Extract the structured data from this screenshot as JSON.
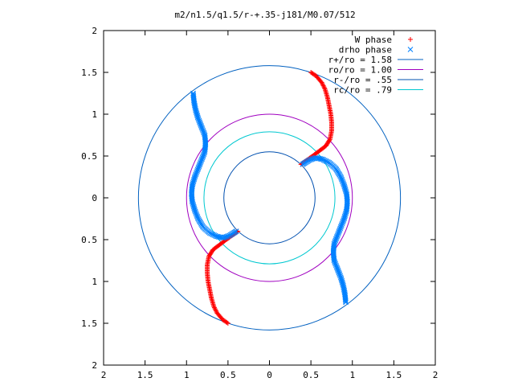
{
  "chart_data": {
    "type": "scatter",
    "title": "m2/n1.5/q1.5/r-+.35-j181/M0.07/512",
    "xlim": [
      -2,
      2
    ],
    "ylim": [
      -2,
      2
    ],
    "grid": false,
    "legend_position": "top-right",
    "x_ticks": [
      -2,
      -1.5,
      -1,
      -0.5,
      0,
      0.5,
      1,
      1.5,
      2
    ],
    "y_ticks": [
      -2,
      -1.5,
      -1,
      -0.5,
      0,
      0.5,
      1,
      1.5,
      2
    ],
    "x_tick_labels": [
      "2",
      "1.5",
      "1",
      "0.5",
      "0",
      "0.5",
      "1",
      "1.5",
      "2"
    ],
    "y_tick_labels": [
      "2",
      "1.5",
      "1",
      "0.5",
      "0",
      "0.5",
      "1",
      "1.5",
      "2"
    ],
    "series": [
      {
        "name": "W phase",
        "marker": "plus",
        "color": "#ff0000",
        "segments": [
          [
            [
              0.38,
              0.4
            ],
            [
              0.45,
              0.45
            ],
            [
              0.52,
              0.5
            ],
            [
              0.6,
              0.56
            ],
            [
              0.68,
              0.62
            ],
            [
              0.73,
              0.7
            ],
            [
              0.75,
              0.8
            ],
            [
              0.75,
              0.9
            ],
            [
              0.74,
              1.0
            ],
            [
              0.72,
              1.1
            ],
            [
              0.7,
              1.2
            ],
            [
              0.67,
              1.3
            ],
            [
              0.63,
              1.38
            ],
            [
              0.56,
              1.46
            ],
            [
              0.5,
              1.5
            ]
          ],
          [
            [
              -0.38,
              -0.4
            ],
            [
              -0.45,
              -0.45
            ],
            [
              -0.52,
              -0.5
            ],
            [
              -0.6,
              -0.56
            ],
            [
              -0.68,
              -0.62
            ],
            [
              -0.73,
              -0.7
            ],
            [
              -0.75,
              -0.8
            ],
            [
              -0.75,
              -0.9
            ],
            [
              -0.74,
              -1.0
            ],
            [
              -0.72,
              -1.1
            ],
            [
              -0.7,
              -1.2
            ],
            [
              -0.67,
              -1.3
            ],
            [
              -0.63,
              -1.38
            ],
            [
              -0.56,
              -1.46
            ],
            [
              -0.5,
              -1.5
            ]
          ]
        ]
      },
      {
        "name": "drho phase",
        "marker": "cross",
        "color": "#0080ff",
        "segments": [
          [
            [
              0.4,
              0.4
            ],
            [
              0.48,
              0.45
            ],
            [
              0.56,
              0.48
            ],
            [
              0.64,
              0.46
            ],
            [
              0.72,
              0.42
            ],
            [
              0.8,
              0.35
            ],
            [
              0.86,
              0.25
            ],
            [
              0.9,
              0.15
            ],
            [
              0.93,
              0.05
            ],
            [
              0.94,
              -0.05
            ],
            [
              0.93,
              -0.15
            ],
            [
              0.9,
              -0.25
            ],
            [
              0.86,
              -0.35
            ],
            [
              0.82,
              -0.45
            ],
            [
              0.78,
              -0.55
            ],
            [
              0.77,
              -0.65
            ],
            [
              0.78,
              -0.75
            ],
            [
              0.82,
              -0.85
            ],
            [
              0.86,
              -0.95
            ],
            [
              0.89,
              -1.05
            ],
            [
              0.91,
              -1.15
            ],
            [
              0.92,
              -1.25
            ]
          ],
          [
            [
              -0.4,
              -0.4
            ],
            [
              -0.48,
              -0.45
            ],
            [
              -0.56,
              -0.48
            ],
            [
              -0.64,
              -0.46
            ],
            [
              -0.72,
              -0.42
            ],
            [
              -0.8,
              -0.35
            ],
            [
              -0.86,
              -0.25
            ],
            [
              -0.9,
              -0.15
            ],
            [
              -0.93,
              -0.05
            ],
            [
              -0.94,
              0.05
            ],
            [
              -0.93,
              0.15
            ],
            [
              -0.9,
              0.25
            ],
            [
              -0.86,
              0.35
            ],
            [
              -0.82,
              0.45
            ],
            [
              -0.78,
              0.55
            ],
            [
              -0.77,
              0.65
            ],
            [
              -0.78,
              0.75
            ],
            [
              -0.82,
              0.85
            ],
            [
              -0.86,
              0.95
            ],
            [
              -0.89,
              1.05
            ],
            [
              -0.91,
              1.15
            ],
            [
              -0.92,
              1.25
            ]
          ]
        ]
      },
      {
        "name": "r+/ro = 1.58",
        "type": "circle",
        "radius": 1.58,
        "color": "#0060c0"
      },
      {
        "name": "ro/ro = 1.00",
        "type": "circle",
        "radius": 1.0,
        "color": "#a000c0"
      },
      {
        "name": "r-/ro = .55",
        "type": "circle",
        "radius": 0.55,
        "color": "#0050b0"
      },
      {
        "name": "rc/ro = .79",
        "type": "circle",
        "radius": 0.79,
        "color": "#00c8d0"
      }
    ]
  }
}
